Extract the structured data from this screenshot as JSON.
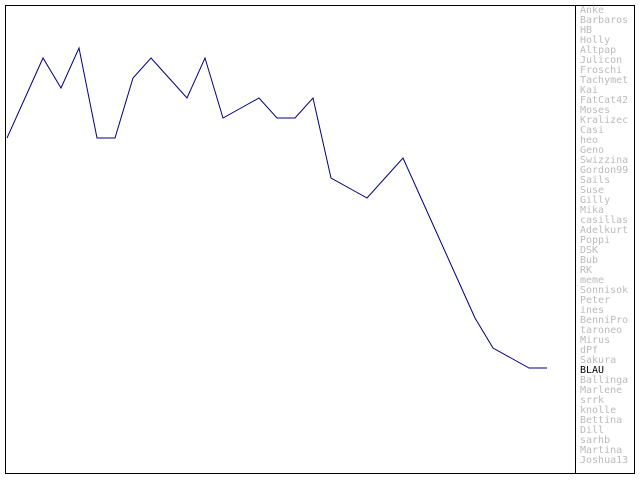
{
  "chart_data": {
    "type": "line",
    "x": [
      1,
      2,
      3,
      4,
      5,
      6,
      7,
      8,
      9,
      10,
      11,
      12,
      13,
      14,
      15,
      16,
      17,
      18,
      19,
      20,
      21,
      22,
      23,
      24,
      25,
      26,
      27,
      28,
      29,
      30,
      31
    ],
    "xlim": [
      1,
      31
    ],
    "ylim": [
      1,
      46
    ],
    "y_inverted": true,
    "labels": [
      "Anke",
      "Barbaros",
      "HB",
      "Holly",
      "Altpap",
      "Julicon",
      "Froschi",
      "Tachymet",
      "Kai",
      "FatCat42",
      "Moses",
      "Kralizec",
      "Casi",
      "heo",
      "Geno",
      "Swizzina",
      "Gordon99",
      "Sails",
      "Suse",
      "Gilly",
      "Mika",
      "casillas",
      "Adelkurt",
      "Poppi",
      "DSK",
      "Bub",
      "RK",
      "meme",
      "Sonnisok",
      "Peter",
      "ines",
      "BenniPro",
      "taroneo",
      "Mirus",
      "dPf",
      "Sakura",
      "BLAU",
      "Ballinga",
      "Marlene",
      "srrk",
      "knolle",
      "Bettina",
      "Dill",
      "sarhb",
      "Martina",
      "Joshua13"
    ],
    "label_color": "#bbbbbb",
    "highlight_label_color": "#000000",
    "series": [
      {
        "name": "BLAU",
        "color": "#000080",
        "values": [
          14,
          10,
          6,
          9,
          5,
          14,
          14,
          8,
          6,
          8,
          10,
          6,
          12,
          11,
          10,
          12,
          12,
          10,
          18,
          19,
          20,
          18,
          16,
          20,
          24,
          28,
          32,
          35,
          36,
          37,
          37
        ]
      }
    ]
  }
}
